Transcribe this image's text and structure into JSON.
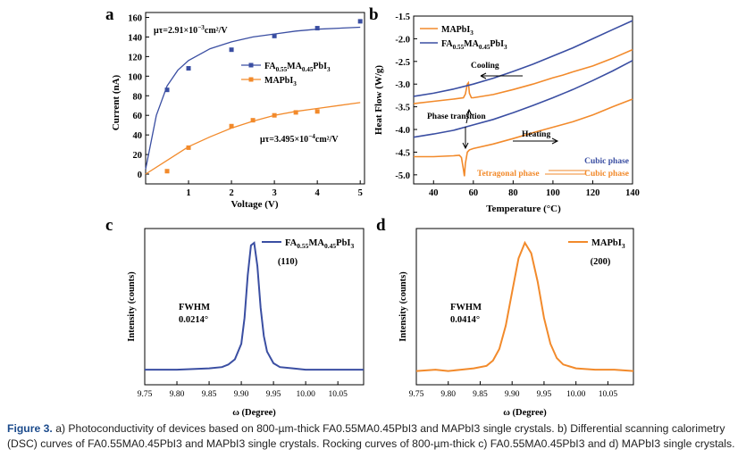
{
  "colors": {
    "blue": "#3a4ea2",
    "orange": "#f28a2b",
    "axis": "#000000",
    "caption_label": "#1c4b8c"
  },
  "panels": {
    "a": "a",
    "b": "b",
    "c": "c",
    "d": "d"
  },
  "caption": {
    "label": "Figure 3.",
    "text": "a) Photoconductivity of devices based on 800-µm-thick FA0.55MA0.45PbI3 and MAPbI3 single crystals. b) Differential scanning calorimetry (DSC) curves of FA0.55MA0.45PbI3 and MAPbI3 single crystals. Rocking curves of 800-µm-thick c) FA0.55MA0.45PbI3 and d) MAPbI3 single crystals."
  },
  "chart_data": [
    {
      "panel": "a",
      "type": "scatter",
      "xlabel": "Voltage (V)",
      "ylabel": "Current (nA)",
      "xlim": [
        0,
        5.1
      ],
      "ylim": [
        -10,
        165
      ],
      "xticks": [
        1,
        2,
        3,
        4,
        5
      ],
      "yticks": [
        0,
        20,
        40,
        60,
        80,
        100,
        120,
        140,
        160
      ],
      "annotations": [
        "μτ=2.91×10⁻³cm²/V",
        "μτ=3.495×10⁻⁴cm²/V"
      ],
      "legend_position": "center-right",
      "series": [
        {
          "name": "FA0.55MA0.45PbI3",
          "color": "#3a4ea2",
          "x": [
            0.5,
            1,
            2,
            3,
            4,
            5
          ],
          "y": [
            86,
            108,
            127,
            141,
            149,
            156
          ],
          "fit": {
            "x": [
              0.0,
              0.25,
              0.5,
              0.75,
              1.0,
              1.5,
              2.0,
              2.5,
              3.0,
              3.5,
              4.0,
              4.5,
              5.0
            ],
            "y": [
              5,
              60,
              90,
              106,
              116,
              128,
              135,
              140,
              143,
              146,
              148,
              149,
              150
            ]
          }
        },
        {
          "name": "MAPbI3",
          "color": "#f28a2b",
          "x": [
            0.5,
            1,
            2,
            2.5,
            3,
            3.5,
            4
          ],
          "y": [
            3,
            27,
            49,
            55,
            60,
            63,
            64
          ],
          "fit": {
            "x": [
              0.0,
              0.5,
              1.0,
              1.5,
              2.0,
              2.5,
              3.0,
              3.5,
              4.0,
              4.5,
              5.0
            ],
            "y": [
              0,
              14,
              28,
              38,
              47,
              54,
              60,
              64,
              67,
              70,
              73
            ]
          }
        }
      ]
    },
    {
      "panel": "b",
      "type": "line",
      "xlabel": "Temperature (°C)",
      "ylabel": "Heat Flow (W/g)",
      "xlim": [
        30,
        140
      ],
      "ylim": [
        -5.2,
        -1.5
      ],
      "xticks": [
        40,
        60,
        80,
        100,
        120,
        140
      ],
      "yticks": [
        -5.0,
        -4.5,
        -4.0,
        -3.5,
        -3.0,
        -2.5,
        -2.0,
        -1.5
      ],
      "annotations": [
        "Cooling",
        "Phase transition",
        "Heating",
        "Cubic phase",
        "Tetragonal phase",
        "Cubic phase"
      ],
      "legend_position": "top-left",
      "series": [
        {
          "name": "MAPbI3",
          "color": "#f28a2b",
          "curve": "cooling",
          "x": [
            30,
            40,
            50,
            55,
            56,
            57,
            57.5,
            58,
            59,
            60,
            70,
            80,
            90,
            100,
            105,
            110,
            120,
            130,
            140
          ],
          "y": [
            -3.43,
            -3.38,
            -3.33,
            -3.3,
            -3.22,
            -3.0,
            -2.97,
            -3.2,
            -3.3,
            -3.3,
            -3.23,
            -3.12,
            -3.0,
            -2.86,
            -2.8,
            -2.73,
            -2.6,
            -2.43,
            -2.24
          ]
        },
        {
          "name": "FA0.55MA0.45PbI3",
          "color": "#3a4ea2",
          "curve": "cooling",
          "x": [
            30,
            40,
            50,
            60,
            70,
            80,
            90,
            100,
            110,
            120,
            130,
            140
          ],
          "y": [
            -3.27,
            -3.2,
            -3.11,
            -3.0,
            -2.87,
            -2.72,
            -2.56,
            -2.38,
            -2.2,
            -2.0,
            -1.8,
            -1.6
          ]
        },
        {
          "name": "FA0.55MA0.45PbI3",
          "color": "#3a4ea2",
          "curve": "heating",
          "x": [
            30,
            40,
            50,
            60,
            70,
            80,
            90,
            100,
            110,
            120,
            130,
            140
          ],
          "y": [
            -4.17,
            -4.1,
            -4.02,
            -3.9,
            -3.78,
            -3.63,
            -3.47,
            -3.3,
            -3.12,
            -2.92,
            -2.71,
            -2.48
          ]
        },
        {
          "name": "MAPbI3",
          "color": "#f28a2b",
          "curve": "heating",
          "x": [
            30,
            40,
            50,
            53,
            54,
            55,
            55.5,
            56,
            57,
            58,
            60,
            70,
            80,
            90,
            100,
            110,
            120,
            130,
            140
          ],
          "y": [
            -4.6,
            -4.6,
            -4.58,
            -4.57,
            -4.62,
            -4.88,
            -5.03,
            -4.75,
            -4.5,
            -4.45,
            -4.42,
            -4.32,
            -4.2,
            -4.07,
            -3.95,
            -3.83,
            -3.68,
            -3.5,
            -3.33
          ]
        }
      ]
    },
    {
      "panel": "c",
      "type": "line",
      "xlabel": "ω (Degree)",
      "ylabel": "Intensity (counts)",
      "xlim": [
        9.75,
        10.09
      ],
      "xticks": [
        "9.75",
        "9.80",
        "9.85",
        "9.90",
        "9.95",
        "10.00",
        "10.05"
      ],
      "annotations": [
        "(110)",
        "FWHM",
        "0.0214°"
      ],
      "legend_position": "top-right",
      "series": [
        {
          "name": "FA0.55MA0.45PbI3",
          "color": "#3a4ea2",
          "x": [
            9.75,
            9.8,
            9.85,
            9.87,
            9.88,
            9.89,
            9.9,
            9.905,
            9.91,
            9.915,
            9.92,
            9.925,
            9.93,
            9.935,
            9.94,
            9.95,
            9.96,
            9.98,
            10.0,
            10.05,
            10.09
          ],
          "y": [
            0.02,
            0.02,
            0.03,
            0.04,
            0.06,
            0.1,
            0.22,
            0.42,
            0.75,
            0.98,
            1.0,
            0.82,
            0.5,
            0.28,
            0.16,
            0.07,
            0.04,
            0.03,
            0.02,
            0.02,
            0.02
          ]
        }
      ]
    },
    {
      "panel": "d",
      "type": "line",
      "xlabel": "ω (Degree)",
      "ylabel": "Intensity (counts)",
      "xlim": [
        9.75,
        10.09
      ],
      "xticks": [
        "9.75",
        "9.80",
        "9.85",
        "9.90",
        "9.95",
        "10.00",
        "10.05"
      ],
      "annotations": [
        "(200)",
        "FWHM",
        "0.0414°"
      ],
      "legend_position": "top-right",
      "series": [
        {
          "name": "MAPbI3",
          "color": "#f28a2b",
          "x": [
            9.75,
            9.78,
            9.8,
            9.82,
            9.84,
            9.86,
            9.87,
            9.88,
            9.89,
            9.9,
            9.91,
            9.92,
            9.93,
            9.94,
            9.95,
            9.96,
            9.97,
            9.98,
            10.0,
            10.03,
            10.06,
            10.09
          ],
          "y": [
            0.01,
            0.02,
            0.01,
            0.02,
            0.03,
            0.05,
            0.09,
            0.18,
            0.36,
            0.62,
            0.88,
            1.0,
            0.92,
            0.7,
            0.42,
            0.22,
            0.11,
            0.06,
            0.03,
            0.02,
            0.02,
            0.01
          ]
        }
      ]
    }
  ]
}
